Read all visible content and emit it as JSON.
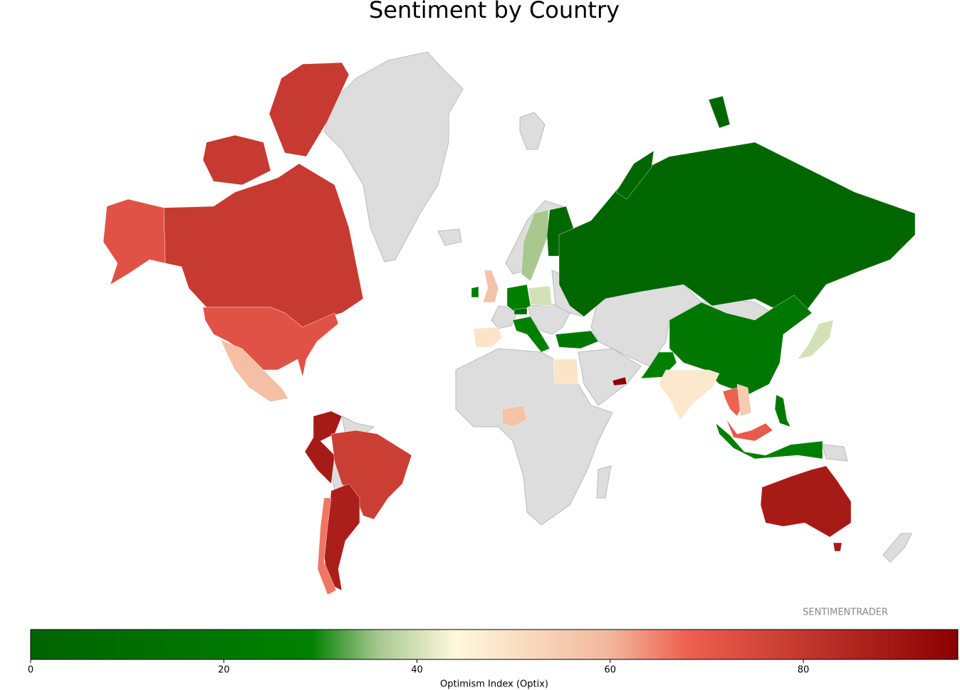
{
  "chart_data": {
    "type": "choropleth",
    "title": "Sentiment by Country",
    "values": [
      79,
      72,
      58,
      88,
      78,
      87,
      66,
      57,
      25,
      49,
      27,
      29,
      8,
      40,
      36,
      4,
      3,
      21,
      20,
      28,
      48,
      40,
      68,
      55,
      70,
      28,
      22,
      88,
      49,
      57,
      95
    ],
    "colorscale": [
      [
        0,
        "#006400"
      ],
      [
        29,
        "#008000"
      ],
      [
        36,
        "#a8c890"
      ],
      [
        44,
        "#fff8dc"
      ],
      [
        60,
        "#f2b79c"
      ],
      [
        68,
        "#ee6050"
      ],
      [
        96,
        "#8b0000"
      ]
    ],
    "missing_color": "#dddddd",
    "colorbar": {
      "label": "Optimism Index (Optix)",
      "lim": [
        0,
        96
      ],
      "ticks": [
        0,
        20,
        40,
        60,
        80
      ]
    },
    "watermark": "SENTIMENTRADER"
  }
}
